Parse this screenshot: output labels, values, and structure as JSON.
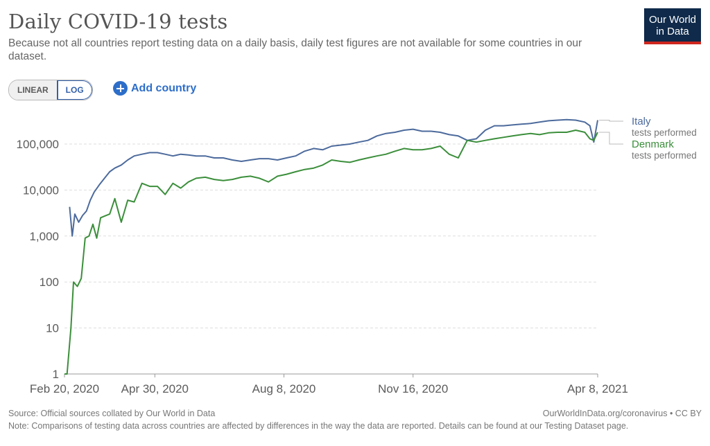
{
  "header": {
    "title": "Daily COVID-19 tests",
    "subtitle": "Because not all countries report testing data on a daily basis, daily test figures are not available for some countries in our dataset."
  },
  "logo": {
    "line1": "Our World",
    "line2": "in Data"
  },
  "controls": {
    "scale_options": [
      "LINEAR",
      "LOG"
    ],
    "scale_selected": "LOG",
    "add_country_label": "Add country"
  },
  "footer": {
    "source": "Source: Official sources collated by Our World in Data",
    "attribution": "OurWorldInData.org/coronavirus • CC BY",
    "note": "Note: Comparisons of testing data across countries are affected by differences in the way the data are reported. Details can be found at our Testing Dataset page."
  },
  "colors": {
    "italy": "#4c6a9c",
    "denmark": "#3b8e3b",
    "grid": "#dddddd",
    "text": "#5b5b5b"
  },
  "chart_data": {
    "type": "line",
    "y_scale": "log",
    "ylim": [
      1,
      400000
    ],
    "y_ticks": [
      {
        "value": 1,
        "label": "1"
      },
      {
        "value": 10,
        "label": "10"
      },
      {
        "value": 100,
        "label": "100"
      },
      {
        "value": 1000,
        "label": "1,000"
      },
      {
        "value": 10000,
        "label": "10,000"
      },
      {
        "value": 100000,
        "label": "100,000"
      }
    ],
    "x_range": [
      "2020-02-20",
      "2021-04-08"
    ],
    "x_ticks": [
      {
        "date": "2020-02-20",
        "label": "Feb 20, 2020"
      },
      {
        "date": "2020-04-30",
        "label": "Apr 30, 2020"
      },
      {
        "date": "2020-08-08",
        "label": "Aug 8, 2020"
      },
      {
        "date": "2020-11-16",
        "label": "Nov 16, 2020"
      },
      {
        "date": "2021-04-08",
        "label": "Apr 8, 2021"
      }
    ],
    "grid": "horizontal dashed",
    "legend_placement": "right",
    "series": [
      {
        "name": "Italy",
        "sublabel": "tests performed",
        "x": [
          "2020-02-24",
          "2020-02-26",
          "2020-02-28",
          "2020-03-02",
          "2020-03-05",
          "2020-03-08",
          "2020-03-11",
          "2020-03-14",
          "2020-03-18",
          "2020-03-22",
          "2020-03-26",
          "2020-03-30",
          "2020-04-04",
          "2020-04-09",
          "2020-04-14",
          "2020-04-20",
          "2020-04-26",
          "2020-05-02",
          "2020-05-08",
          "2020-05-14",
          "2020-05-20",
          "2020-05-26",
          "2020-06-01",
          "2020-06-08",
          "2020-06-15",
          "2020-06-22",
          "2020-06-29",
          "2020-07-06",
          "2020-07-13",
          "2020-07-20",
          "2020-07-27",
          "2020-08-03",
          "2020-08-10",
          "2020-08-17",
          "2020-08-24",
          "2020-08-31",
          "2020-09-07",
          "2020-09-14",
          "2020-09-21",
          "2020-09-28",
          "2020-10-05",
          "2020-10-12",
          "2020-10-19",
          "2020-10-26",
          "2020-11-02",
          "2020-11-09",
          "2020-11-16",
          "2020-11-23",
          "2020-11-30",
          "2020-12-07",
          "2020-12-14",
          "2020-12-21",
          "2020-12-28",
          "2021-01-04",
          "2021-01-11",
          "2021-01-18",
          "2021-01-25",
          "2021-02-01",
          "2021-02-08",
          "2021-02-15",
          "2021-02-22",
          "2021-03-01",
          "2021-03-08",
          "2021-03-15",
          "2021-03-22",
          "2021-03-29",
          "2021-04-02",
          "2021-04-05",
          "2021-04-08"
        ],
        "values": [
          4300,
          1000,
          3000,
          2000,
          2800,
          3500,
          6000,
          9000,
          13000,
          18000,
          25000,
          30000,
          35000,
          45000,
          55000,
          60000,
          65000,
          65000,
          60000,
          55000,
          60000,
          58000,
          55000,
          55000,
          50000,
          50000,
          45000,
          42000,
          45000,
          48000,
          48000,
          45000,
          50000,
          55000,
          70000,
          80000,
          75000,
          90000,
          95000,
          100000,
          110000,
          120000,
          150000,
          170000,
          180000,
          200000,
          210000,
          190000,
          190000,
          180000,
          160000,
          150000,
          120000,
          130000,
          200000,
          250000,
          250000,
          260000,
          270000,
          280000,
          300000,
          320000,
          330000,
          340000,
          330000,
          300000,
          250000,
          110000,
          330000
        ]
      },
      {
        "name": "Denmark",
        "sublabel": "tests performed",
        "x": [
          "2020-02-20",
          "2020-02-22",
          "2020-02-25",
          "2020-02-27",
          "2020-03-01",
          "2020-03-04",
          "2020-03-07",
          "2020-03-10",
          "2020-03-13",
          "2020-03-16",
          "2020-03-19",
          "2020-03-22",
          "2020-03-26",
          "2020-03-30",
          "2020-04-04",
          "2020-04-09",
          "2020-04-14",
          "2020-04-20",
          "2020-04-26",
          "2020-05-02",
          "2020-05-08",
          "2020-05-14",
          "2020-05-20",
          "2020-05-26",
          "2020-06-01",
          "2020-06-08",
          "2020-06-15",
          "2020-06-22",
          "2020-06-29",
          "2020-07-06",
          "2020-07-13",
          "2020-07-20",
          "2020-07-27",
          "2020-08-03",
          "2020-08-10",
          "2020-08-17",
          "2020-08-24",
          "2020-08-31",
          "2020-09-07",
          "2020-09-14",
          "2020-09-21",
          "2020-09-28",
          "2020-10-05",
          "2020-10-12",
          "2020-10-19",
          "2020-10-26",
          "2020-11-02",
          "2020-11-09",
          "2020-11-16",
          "2020-11-23",
          "2020-11-30",
          "2020-12-07",
          "2020-12-14",
          "2020-12-21",
          "2020-12-28",
          "2021-01-04",
          "2021-01-11",
          "2021-01-18",
          "2021-01-25",
          "2021-02-01",
          "2021-02-08",
          "2021-02-15",
          "2021-02-22",
          "2021-03-01",
          "2021-03-08",
          "2021-03-15",
          "2021-03-22",
          "2021-03-29",
          "2021-04-02",
          "2021-04-05",
          "2021-04-08"
        ],
        "values": [
          1,
          1,
          10,
          100,
          80,
          120,
          900,
          1000,
          1800,
          900,
          2500,
          2700,
          3000,
          6500,
          2000,
          6000,
          5500,
          14000,
          12000,
          12000,
          8000,
          14000,
          11000,
          15000,
          18000,
          19000,
          17000,
          16000,
          17000,
          19000,
          20000,
          18000,
          15000,
          20000,
          22000,
          25000,
          28000,
          30000,
          35000,
          45000,
          42000,
          40000,
          45000,
          50000,
          55000,
          60000,
          70000,
          80000,
          75000,
          75000,
          80000,
          90000,
          60000,
          50000,
          120000,
          110000,
          120000,
          130000,
          140000,
          150000,
          160000,
          170000,
          160000,
          175000,
          180000,
          180000,
          200000,
          180000,
          130000,
          120000,
          180000
        ]
      }
    ]
  }
}
